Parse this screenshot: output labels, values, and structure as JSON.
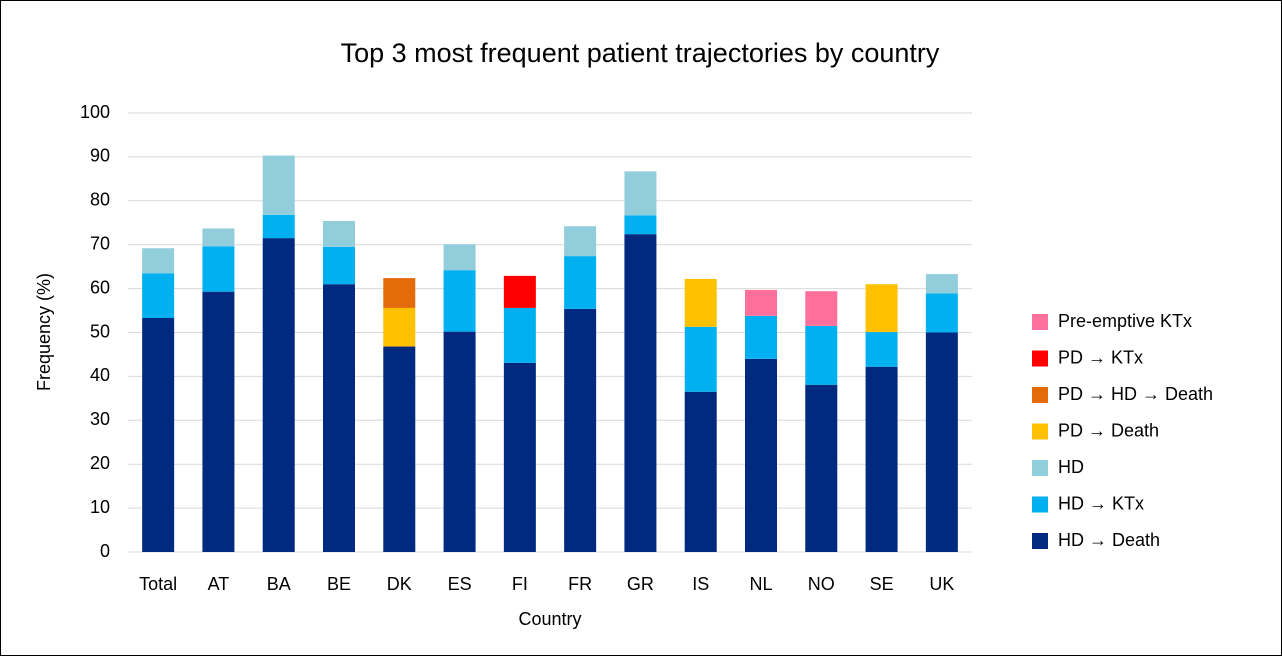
{
  "chart_data": {
    "type": "stacked_bar",
    "title": "Top 3 most frequent patient trajectories by country",
    "x_label": "Country",
    "y_label": "Frequency (%)",
    "categories": [
      "Total",
      "AT",
      "BA",
      "BE",
      "DK",
      "ES",
      "FI",
      "FR",
      "GR",
      "IS",
      "NL",
      "NO",
      "SE",
      "UK"
    ],
    "series": [
      {
        "name": "HD → Death",
        "color": "#002a7f",
        "values": [
          53.3,
          59.3,
          71.5,
          61,
          46.8,
          50.2,
          43.1,
          55.4,
          72.4,
          36.5,
          44,
          38.1,
          42.2,
          50
        ]
      },
      {
        "name": "HD → KTx",
        "color": "#00b0f0",
        "values": [
          10.2,
          10.3,
          5.3,
          8.5,
          null,
          14,
          12.5,
          12,
          4.3,
          14.8,
          9.8,
          13.4,
          7.9,
          8.9
        ]
      },
      {
        "name": "HD",
        "color": "#92cddc",
        "values": [
          5.7,
          4.1,
          13.5,
          5.9,
          null,
          5.9,
          null,
          6.8,
          10,
          null,
          null,
          null,
          null,
          4.4
        ]
      },
      {
        "name": "PD → Death",
        "color": "#ffc000",
        "values": [
          null,
          null,
          null,
          null,
          8.8,
          null,
          null,
          null,
          null,
          10.9,
          null,
          null,
          10.9,
          null
        ]
      },
      {
        "name": "PD → HD → Death",
        "color": "#e36c09",
        "values": [
          null,
          null,
          null,
          null,
          6.8,
          null,
          null,
          null,
          null,
          null,
          null,
          null,
          null,
          null
        ]
      },
      {
        "name": "PD → KTx",
        "color": "#ff0000",
        "values": [
          null,
          null,
          null,
          null,
          null,
          null,
          7.3,
          null,
          null,
          null,
          null,
          null,
          null,
          null
        ]
      },
      {
        "name": "Pre-emptive KTx",
        "color": "#ff6f9c",
        "values": [
          null,
          null,
          null,
          null,
          null,
          null,
          null,
          null,
          null,
          null,
          5.9,
          7.9,
          null,
          null
        ]
      }
    ],
    "ylim": [
      0,
      100
    ],
    "yticks": [
      0,
      10,
      20,
      30,
      40,
      50,
      60,
      70,
      80,
      90,
      100
    ],
    "grid": true,
    "legend": "right"
  }
}
